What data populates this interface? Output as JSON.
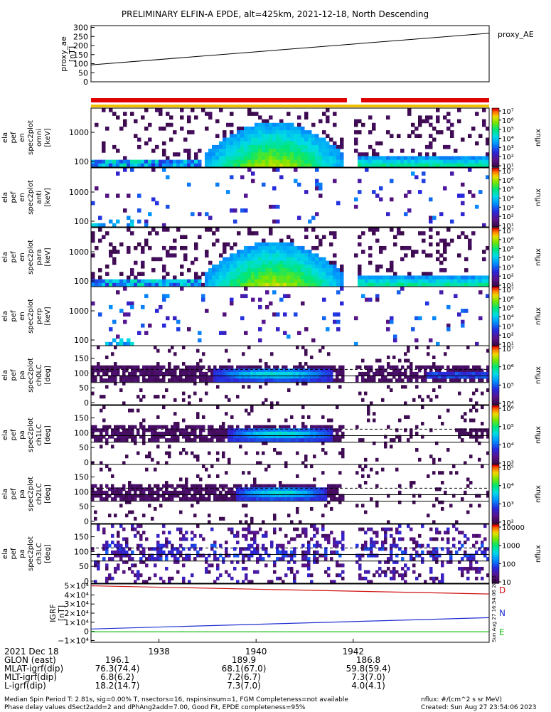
{
  "chart_data": {
    "type": "heatmap",
    "title": "PRELIMINARY ELFIN-A EPDE, alt=425km, 2021-12-18, North Descending",
    "ae_panel": {
      "ylabel": "proxy_ae\n[nT]",
      "legend": "proxy_AE",
      "yticks": [
        0,
        50,
        100,
        150,
        200,
        250,
        300
      ],
      "ylim": [
        0,
        310
      ],
      "series": [
        {
          "name": "proxy_AE",
          "x_min": [
            1936.6,
            1944.8
          ],
          "values": [
            93,
            268
          ]
        }
      ]
    },
    "spectrogram_panels": [
      {
        "label": "ela\npef\nen\nspec2plot\nomni\n[keV]",
        "yticks": [
          "100",
          "1000"
        ],
        "colorbar_ticks": [
          "10⁷",
          "10⁶",
          "10⁵",
          "10⁴",
          "10³",
          "10²",
          "10¹"
        ],
        "colorbar_label": "nflux"
      },
      {
        "label": "ela\npef\nen\nspec2plot\nanti\n[keV]",
        "yticks": [
          "100",
          "1000"
        ],
        "colorbar_ticks": [
          "10⁷",
          "10⁶",
          "10⁵",
          "10⁴",
          "10³",
          "10²",
          "10¹"
        ],
        "colorbar_label": "nflux"
      },
      {
        "label": "ela\npef\nen\nspec2plot\npara\n[keV]",
        "yticks": [
          "100",
          "1000"
        ],
        "colorbar_ticks": [
          "10⁷",
          "10⁶",
          "10⁵",
          "10⁴",
          "10³",
          "10²",
          "10¹"
        ],
        "colorbar_label": "nflux"
      },
      {
        "label": "ela\npef\nen\nspec2plot\nperp\n[keV]",
        "yticks": [
          "100",
          "1000"
        ],
        "colorbar_ticks": [
          "10⁷",
          "10⁶",
          "10⁵",
          "10⁴",
          "10³",
          "10²",
          "10¹"
        ],
        "colorbar_label": "nflux"
      }
    ],
    "pitch_panels": [
      {
        "label": "ela\npef\npa\nspec2plot\nch0LC\n[deg]",
        "yticks": [
          0,
          50,
          100,
          150
        ],
        "colorbar_ticks": [
          "10⁷",
          "10⁶",
          "10⁵",
          "10⁴"
        ],
        "colorbar_label": "nflux"
      },
      {
        "label": "ela\npef\npa\nspec2plot\nch1LC\n[deg]",
        "yticks": [
          0,
          50,
          100,
          150
        ],
        "colorbar_ticks": [
          "10⁶",
          "10⁵",
          "10⁴",
          "10³"
        ],
        "colorbar_label": "nflux"
      },
      {
        "label": "ela\npef\npa\nspec2plot\nch2LC\n[deg]",
        "yticks": [
          0,
          50,
          100,
          150
        ],
        "colorbar_ticks": [
          "10⁵",
          "10⁴",
          "10³",
          "10²"
        ],
        "colorbar_label": "nflux"
      },
      {
        "label": "ela\npef\npa\nspec2plot\nch3LC\n[deg]",
        "yticks": [
          0,
          50,
          100,
          150
        ],
        "colorbar_ticks": [
          "10000",
          "1000",
          "100",
          "10"
        ],
        "colorbar_label": "nflux"
      }
    ],
    "igrf_panel": {
      "ylabel": "IGRF\n[nT]",
      "yticks": [
        "−1×10⁴",
        "0",
        "1×10⁴",
        "2×10⁴",
        "3×10⁴",
        "4×10⁴",
        "5×10⁴"
      ],
      "ylim": [
        -12000,
        52000
      ],
      "series": [
        {
          "name": "D",
          "color": "#d01010",
          "values": [
            50000,
            41000
          ]
        },
        {
          "name": "N",
          "color": "#1f2fd0",
          "values": [
            2600,
            15000
          ]
        },
        {
          "name": "E",
          "color": "#18c018",
          "values": [
            -500,
            -500
          ]
        }
      ],
      "side_stamp": "Sun Aug 27 16:54:06 2023"
    },
    "x_axis": {
      "date": "2021 Dec 18",
      "ticks": [
        "1938",
        "1940",
        "1942"
      ],
      "xlim": [
        1936.6,
        1944.8
      ]
    },
    "orbit_table": {
      "rows": [
        {
          "label": "GLON (east)",
          "values": [
            "196.1",
            "189.9",
            "186.8"
          ]
        },
        {
          "label": "MLAT-igrf(dip)",
          "values": [
            "76.3(74.4)",
            "68.1(67.0)",
            "59.8(59.4)"
          ]
        },
        {
          "label": "MLT-igrf(dip)",
          "values": [
            "6.8(6.2)",
            "7.2(6.7)",
            "7.3(7.0)"
          ]
        },
        {
          "label": "L-igrf(dip)",
          "values": [
            "18.2(14.7)",
            "7.3(7.0)",
            "4.0(4.1)"
          ]
        }
      ]
    },
    "colors": {
      "red_bar": "#e00000",
      "yellow_bar": "#f0c000",
      "dark_cell": "#3a0a48"
    },
    "grid": false
  },
  "footer": {
    "line1": "Median Spin Period T: 2.81s, sig=0.00% T, nsectors=16, nspinsinsum=1, FGM Completeness=not available",
    "line2": "Phase delay values dSect2add=2 and dPhAng2add=7.00, Good Fit, EPDE completeness=95%",
    "units": "nflux: #/(cm^2 s sr MeV)",
    "created": "Created: Sun Aug 27 23:54:06 2023"
  }
}
